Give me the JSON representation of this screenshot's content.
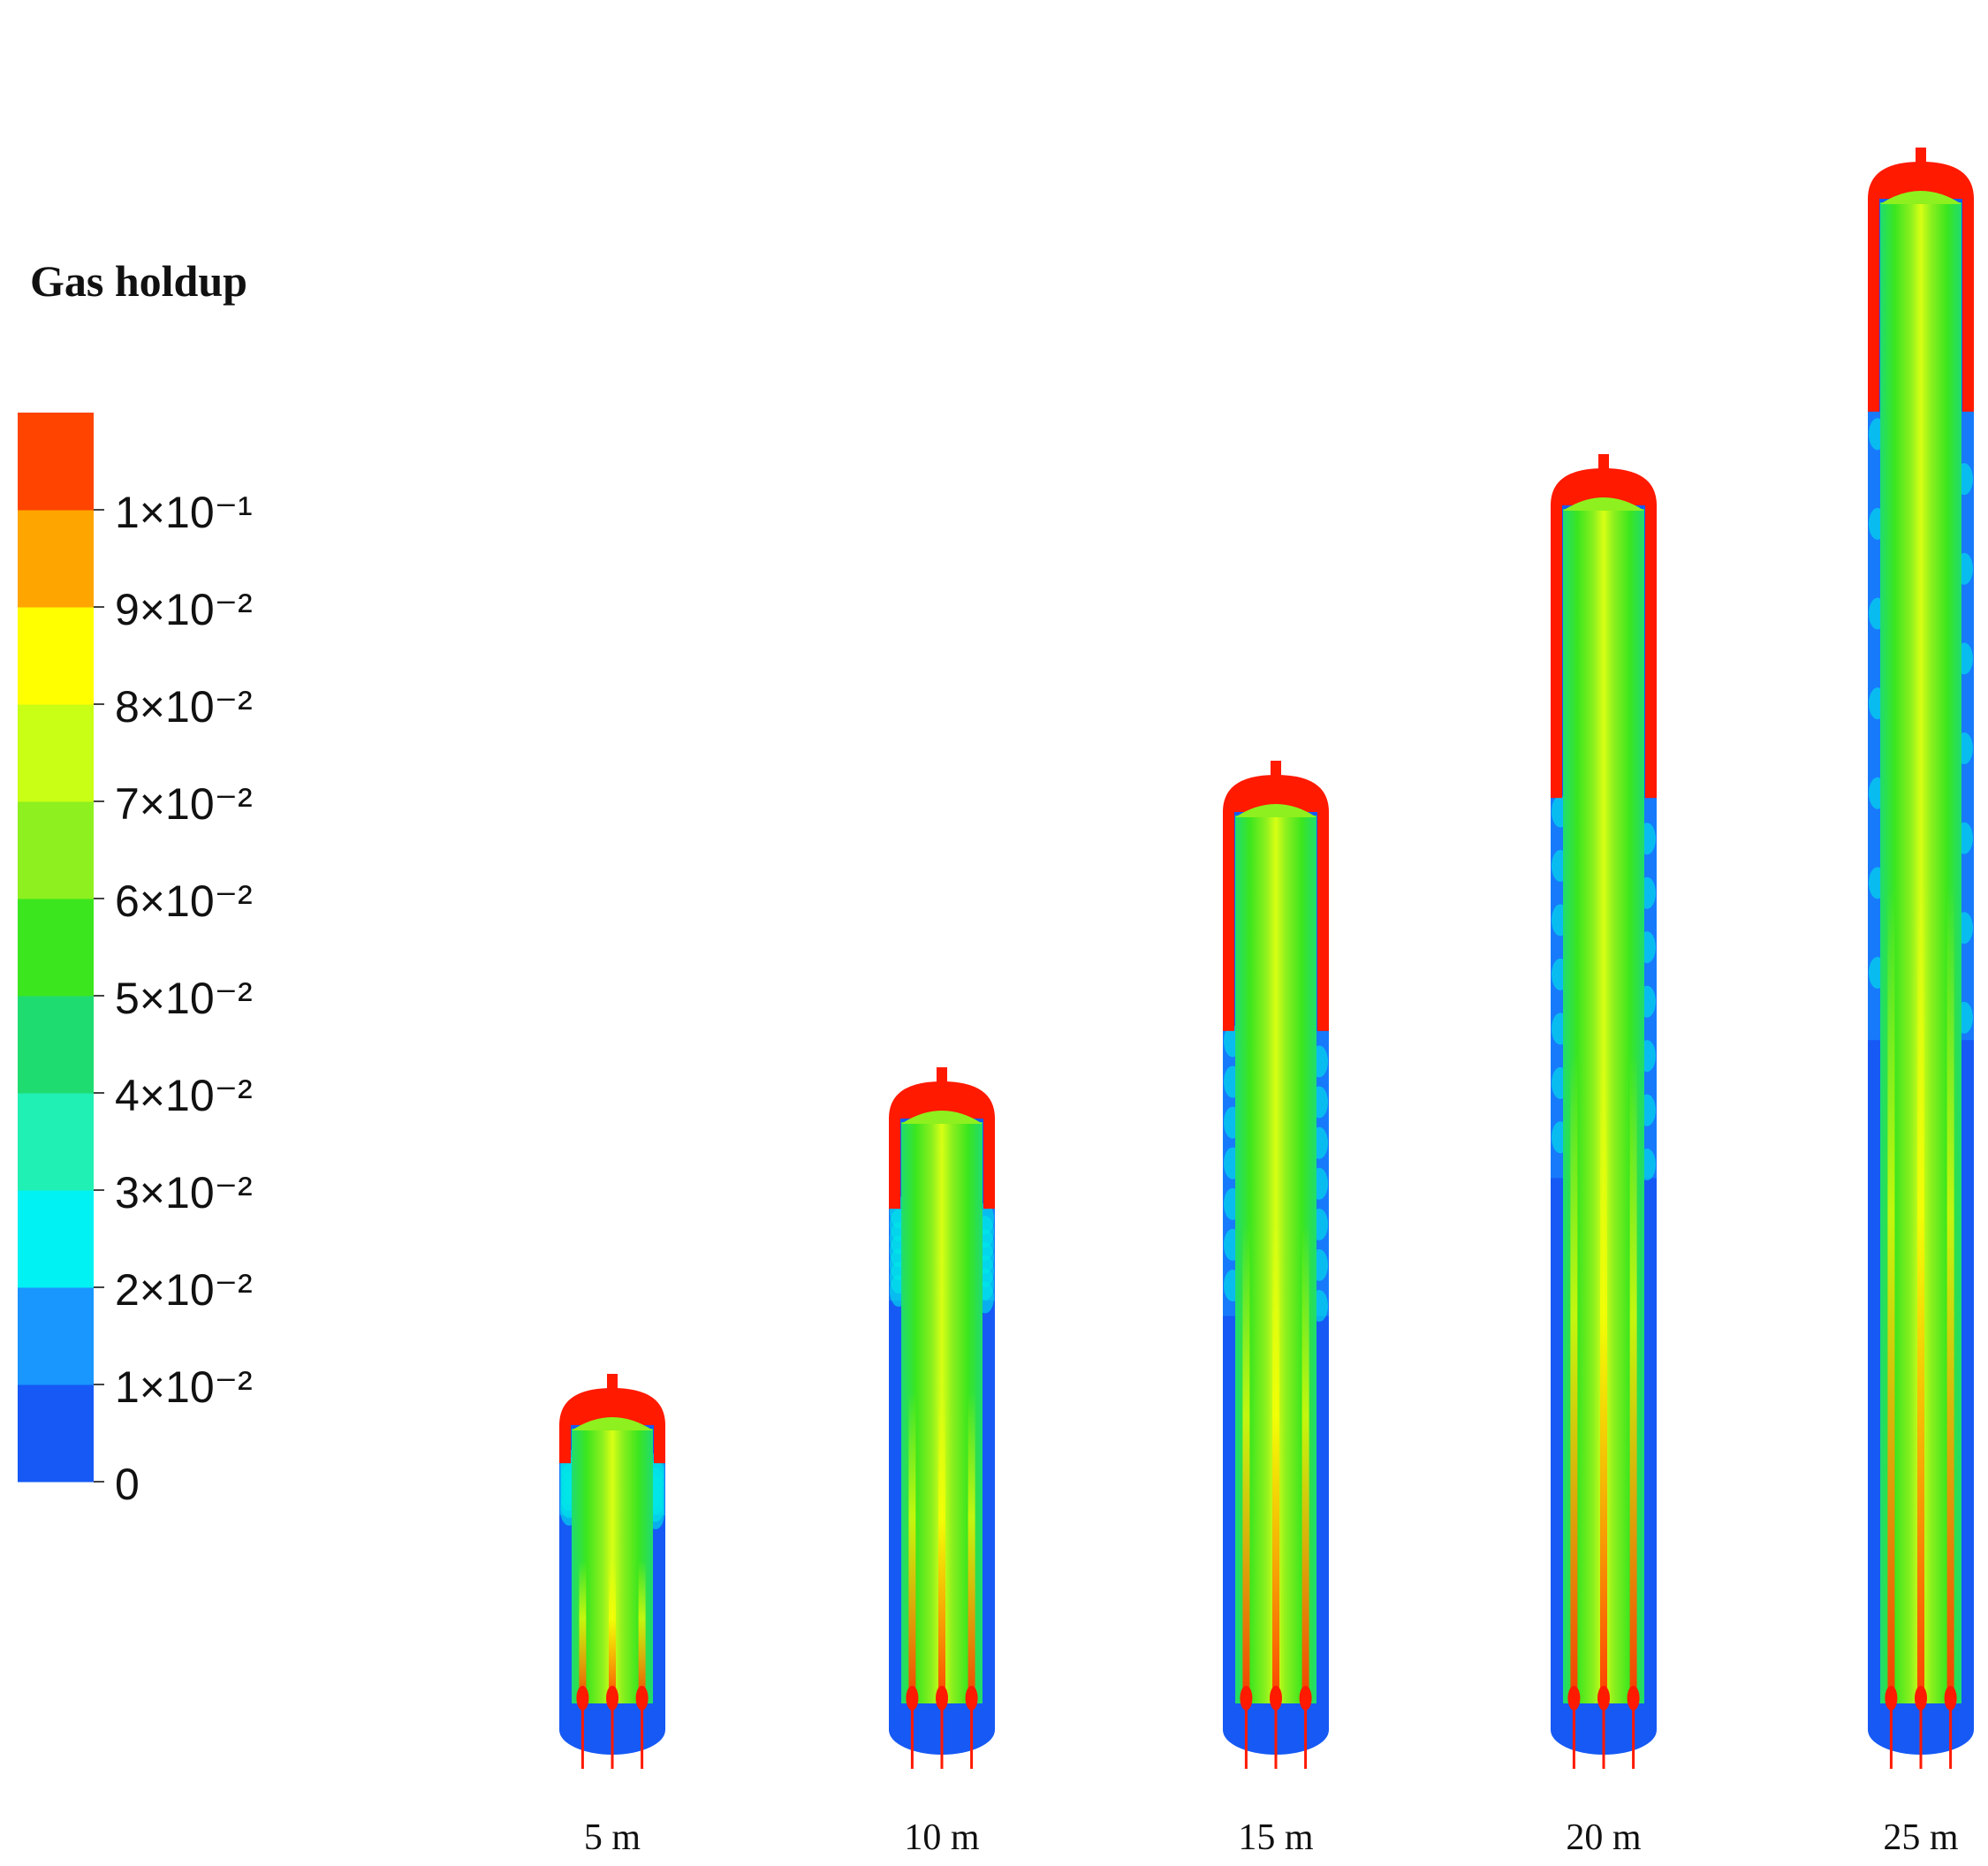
{
  "legend": {
    "title": "Gas holdup",
    "bands": [
      {
        "color": "#1659f5",
        "label": "0"
      },
      {
        "color": "#1a96ff",
        "label": "1×10⁻²"
      },
      {
        "color": "#00f2f2",
        "label": "2×10⁻²"
      },
      {
        "color": "#21f0b4",
        "label": "3×10⁻²"
      },
      {
        "color": "#1fdc70",
        "label": "4×10⁻²"
      },
      {
        "color": "#3ce61e",
        "label": "5×10⁻²"
      },
      {
        "color": "#8ef01e",
        "label": "6×10⁻²"
      },
      {
        "color": "#c8ff14",
        "label": "7×10⁻²"
      },
      {
        "color": "#ffff00",
        "label": "8×10⁻²"
      },
      {
        "color": "#ffa500",
        "label": "9×10⁻²"
      },
      {
        "color": "#ff4400",
        "label": "1×10⁻¹"
      }
    ]
  },
  "columns": [
    {
      "label": "5 m",
      "height_m": 5,
      "top_red_fraction": 0.13
    },
    {
      "label": "10 m",
      "height_m": 10,
      "top_red_fraction": 0.15
    },
    {
      "label": "15 m",
      "height_m": 15,
      "top_red_fraction": 0.24
    },
    {
      "label": "20 m",
      "height_m": 20,
      "top_red_fraction": 0.24
    },
    {
      "label": "25 m",
      "height_m": 25,
      "top_red_fraction": 0.14
    }
  ],
  "colors": {
    "red": "#ff1a00",
    "blue": "#1659f5",
    "light_blue": "#1a96ff",
    "cyan": "#00e8e8",
    "green": "#1fdc70",
    "lime": "#8ef01e",
    "yellow": "#ffff00"
  }
}
